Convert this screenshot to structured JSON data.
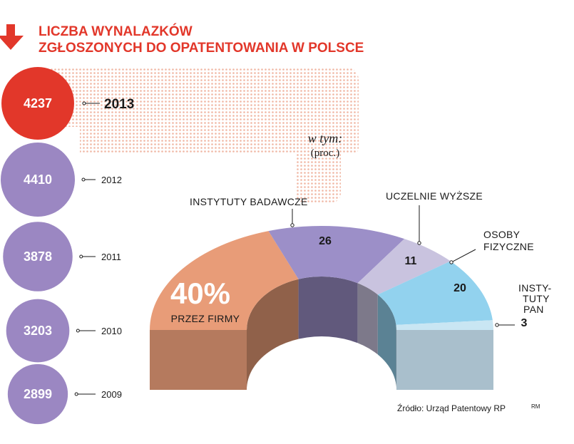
{
  "title": {
    "line1": "LICZBA WYNALAZKÓW",
    "line2": "ZGŁOSZONYCH DO OPATENTOWANIA W POLSCE"
  },
  "subheader": {
    "in_which": "w tym:",
    "unit": "(proc.)"
  },
  "source": "Źródło: Urząd Patentowy RP",
  "signature": "RM",
  "colors": {
    "accent": "#e2372a",
    "bubble": "#9b87c2",
    "firms": "#e89c78",
    "institutes": "#9c8fc8",
    "universities": "#c9c3df",
    "individuals": "#92d2ee",
    "pan": "#c9e6f3"
  },
  "chart_data": [
    {
      "type": "bubble",
      "categories": [
        "2013",
        "2012",
        "2011",
        "2010",
        "2009"
      ],
      "values": [
        4237,
        4410,
        3878,
        3203,
        2899
      ],
      "highlight": "2013"
    },
    {
      "type": "pie",
      "subtitle": "w tym: (proc.)",
      "categories": [
        "PRZEZ FIRMY",
        "INSTYTUTY BADAWCZE",
        "UCZELNIE WYŻSZE",
        "OSOBY FIZYCZNE",
        "INSTYTUTY PAN"
      ],
      "values": [
        40,
        26,
        11,
        20,
        3
      ],
      "value_labels": [
        "40%",
        "26",
        "11",
        "20",
        "3"
      ],
      "shape": "3d-half-donut"
    }
  ]
}
